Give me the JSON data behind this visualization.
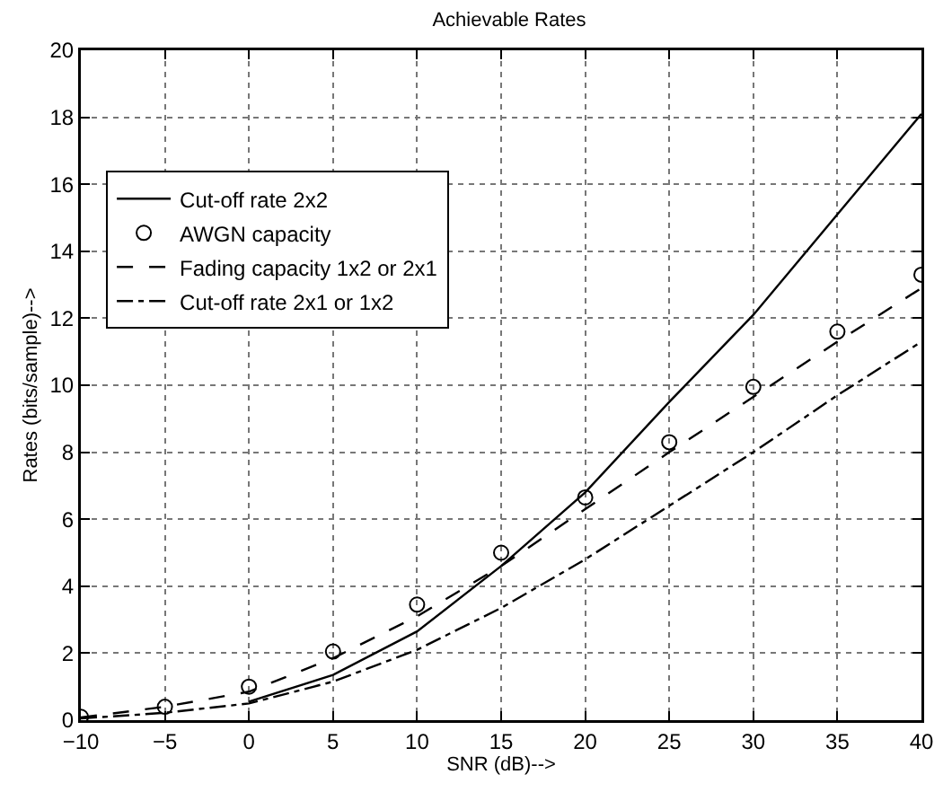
{
  "chart_data": {
    "type": "line",
    "title": "Achievable Rates",
    "xlabel": "SNR (dB)-->",
    "ylabel": "Rates (bits/sample)-->",
    "x": [
      -10,
      -5,
      0,
      5,
      10,
      15,
      20,
      25,
      30,
      35,
      40
    ],
    "series": [
      {
        "name": "Cut-off rate 2x2",
        "color": "#000000",
        "x": [
          0,
          5,
          10,
          15,
          20,
          25,
          30,
          35,
          40
        ],
        "values": [
          0.55,
          1.35,
          2.65,
          4.6,
          6.8,
          9.5,
          12.1,
          15.1,
          18.1
        ],
        "line_style": "solid",
        "marker": "none"
      },
      {
        "name": "AWGN capacity",
        "color": "#000000",
        "type": "scatter",
        "values": [
          0.1,
          0.4,
          1.0,
          2.05,
          3.45,
          5.0,
          6.65,
          8.3,
          9.95,
          11.6,
          13.3
        ],
        "marker": "circle"
      },
      {
        "name": "Fading capacity 1x2 or 2x1",
        "color": "#000000",
        "values": [
          0.08,
          0.4,
          0.85,
          1.85,
          3.1,
          4.6,
          6.3,
          8.0,
          9.65,
          11.3,
          12.9
        ],
        "line_style": "dashed",
        "marker": "none"
      },
      {
        "name": "Cut-off rate 2x1 or 1x2",
        "color": "#000000",
        "values": [
          0.05,
          0.22,
          0.5,
          1.15,
          2.1,
          3.35,
          4.8,
          6.4,
          8.0,
          9.7,
          11.3
        ],
        "line_style": "dashdot",
        "marker": "none"
      }
    ],
    "xlim": [
      -10,
      40
    ],
    "xticks": [
      -10,
      -5,
      0,
      5,
      10,
      15,
      20,
      25,
      30,
      35,
      40
    ],
    "ylim": [
      0,
      20
    ],
    "yticks": [
      0,
      2,
      4,
      6,
      8,
      10,
      12,
      14,
      16,
      18,
      20
    ],
    "grid": true,
    "legend": "top left"
  }
}
